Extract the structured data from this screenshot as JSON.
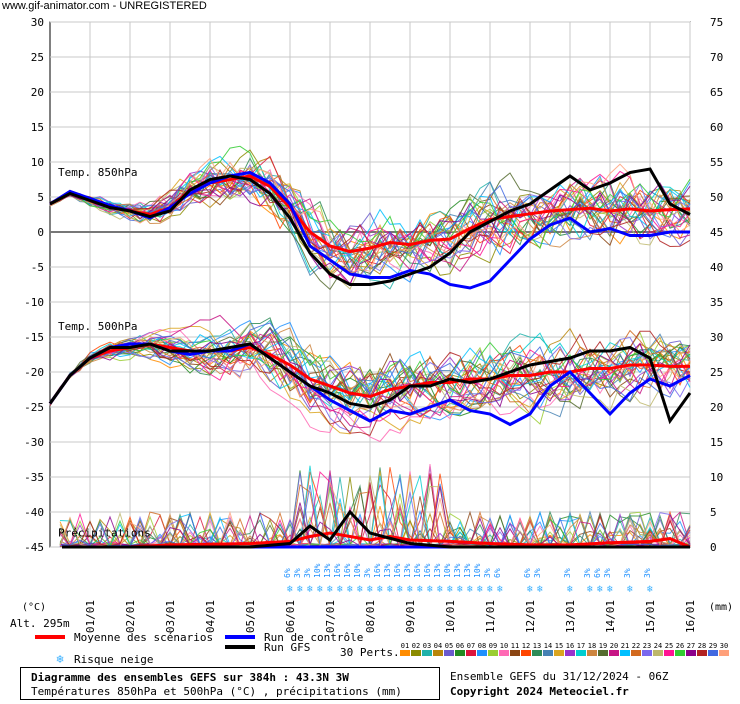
{
  "watermark": "www.gif-animator.com - UNREGISTERED",
  "chart_data": {
    "type": "line",
    "title": "Diagramme des ensembles GEFS sur 384h : 43.3N 3W",
    "subtitle": "Températures 850hPa et 500hPa (°C) , précipitations (mm)",
    "ensemble_info": "Ensemble GEFS du 31/12/2024 - 06Z",
    "copyright": "Copyright 2024 Meteociel.fr",
    "left_axis_unit": "(°C)",
    "right_axis_unit": "(mm)",
    "altitude": "Alt. 295m",
    "ylim_left": [
      -45,
      30
    ],
    "ylim_right": [
      0,
      75
    ],
    "left_ticks": [
      "30",
      "25",
      "20",
      "15",
      "10",
      "5",
      "0",
      "-5",
      "-10",
      "-15",
      "-20",
      "-25",
      "-30",
      "-35",
      "-40",
      "-45"
    ],
    "right_ticks": [
      "75",
      "70",
      "65",
      "60",
      "55",
      "50",
      "45",
      "40",
      "35",
      "30",
      "25",
      "20",
      "15",
      "10",
      "5",
      "0"
    ],
    "x_ticks": [
      "01/01",
      "02/01",
      "03/01",
      "04/01",
      "05/01",
      "06/01",
      "07/01",
      "08/01",
      "09/01",
      "10/01",
      "11/01",
      "12/01",
      "13/01",
      "14/01",
      "15/01",
      "16/01"
    ],
    "panel_labels": [
      "Temp. 850hPa",
      "Temp. 500hPa",
      "Précipitations"
    ],
    "snow_risk_marks": [
      {
        "x": 6.0,
        "pct": "6%"
      },
      {
        "x": 6.25,
        "pct": "3%"
      },
      {
        "x": 6.5,
        "pct": "3%"
      },
      {
        "x": 6.75,
        "pct": "10%"
      },
      {
        "x": 7.0,
        "pct": "13%"
      },
      {
        "x": 7.25,
        "pct": "16%"
      },
      {
        "x": 7.5,
        "pct": "16%"
      },
      {
        "x": 7.75,
        "pct": "10%"
      },
      {
        "x": 8.0,
        "pct": "3%"
      },
      {
        "x": 8.25,
        "pct": "16%"
      },
      {
        "x": 8.5,
        "pct": "13%"
      },
      {
        "x": 8.75,
        "pct": "16%"
      },
      {
        "x": 9.0,
        "pct": "13%"
      },
      {
        "x": 9.25,
        "pct": "16%"
      },
      {
        "x": 9.5,
        "pct": "16%"
      },
      {
        "x": 9.75,
        "pct": "13%"
      },
      {
        "x": 10.0,
        "pct": "10%"
      },
      {
        "x": 10.25,
        "pct": "13%"
      },
      {
        "x": 10.5,
        "pct": "13%"
      },
      {
        "x": 10.75,
        "pct": "10%"
      },
      {
        "x": 11.0,
        "pct": "3%"
      },
      {
        "x": 11.25,
        "pct": "6%"
      },
      {
        "x": 12.0,
        "pct": "6%"
      },
      {
        "x": 12.25,
        "pct": "3%"
      },
      {
        "x": 13.0,
        "pct": "3%"
      },
      {
        "x": 13.5,
        "pct": "3%"
      },
      {
        "x": 13.75,
        "pct": "6%"
      },
      {
        "x": 14.0,
        "pct": "3%"
      },
      {
        "x": 14.5,
        "pct": "3%"
      },
      {
        "x": 15.0,
        "pct": "3%"
      }
    ],
    "snow_label": "Risque neige",
    "legend": {
      "mean": "Moyenne des scénarios",
      "control": "Run de contrôle",
      "gfs": "Run GFS",
      "perts_label": "30 Perts."
    },
    "pert_numbers": [
      "01",
      "02",
      "03",
      "04",
      "05",
      "06",
      "07",
      "08",
      "09",
      "10",
      "11",
      "12",
      "13",
      "14",
      "15",
      "16",
      "17",
      "18",
      "19",
      "20",
      "21",
      "22",
      "23",
      "24",
      "25",
      "26",
      "27",
      "28",
      "29",
      "30"
    ],
    "pert_colors": [
      "#ff8c00",
      "#8b8b00",
      "#20b2aa",
      "#b8860b",
      "#6a5acd",
      "#228b22",
      "#dc143c",
      "#1e90ff",
      "#9acd32",
      "#ff69b4",
      "#8b4513",
      "#ff4500",
      "#2e8b57",
      "#4682b4",
      "#daa520",
      "#9932cc",
      "#00ced1",
      "#cd853f",
      "#556b2f",
      "#c71585",
      "#00bfff",
      "#d2691e",
      "#7b68ee",
      "#bdb76b",
      "#ff1493",
      "#32cd32",
      "#8b008b",
      "#b22222",
      "#4169e1",
      "#ffa07a"
    ],
    "x_range_days": [
      0,
      16
    ],
    "series": [
      {
        "name": "Moyenne des scénarios",
        "role": "mean",
        "color": "#ff0000",
        "t850": [
          [
            0,
            4
          ],
          [
            0.5,
            5.5
          ],
          [
            1,
            4.5
          ],
          [
            1.5,
            3.5
          ],
          [
            2,
            3
          ],
          [
            2.5,
            2.5
          ],
          [
            3,
            3.5
          ],
          [
            3.5,
            6
          ],
          [
            4,
            7
          ],
          [
            4.5,
            7.5
          ],
          [
            5,
            8
          ],
          [
            5.5,
            6.5
          ],
          [
            6,
            3.5
          ],
          [
            6.5,
            0
          ],
          [
            7,
            -2
          ],
          [
            7.5,
            -2.8
          ],
          [
            8,
            -2.3
          ],
          [
            8.5,
            -1.5
          ],
          [
            9,
            -1.8
          ],
          [
            9.5,
            -1.2
          ],
          [
            10,
            -1
          ],
          [
            10.5,
            0.5
          ],
          [
            11,
            1.8
          ],
          [
            11.5,
            2.2
          ],
          [
            12,
            2.6
          ],
          [
            12.5,
            3
          ],
          [
            13,
            3.2
          ],
          [
            13.5,
            3.4
          ],
          [
            14,
            3
          ],
          [
            14.5,
            3.3
          ],
          [
            15,
            3
          ],
          [
            15.5,
            3.2
          ],
          [
            16,
            3.3
          ]
        ],
        "t500": [
          [
            0,
            -24.5
          ],
          [
            0.5,
            -20.5
          ],
          [
            1,
            -18
          ],
          [
            1.5,
            -17
          ],
          [
            2,
            -16.5
          ],
          [
            2.5,
            -16
          ],
          [
            3,
            -16.5
          ],
          [
            3.5,
            -17
          ],
          [
            4,
            -17
          ],
          [
            4.5,
            -17
          ],
          [
            5,
            -16.5
          ],
          [
            5.5,
            -17.5
          ],
          [
            6,
            -19
          ],
          [
            6.5,
            -21
          ],
          [
            7,
            -22
          ],
          [
            7.5,
            -23
          ],
          [
            8,
            -23.5
          ],
          [
            8.5,
            -22.5
          ],
          [
            9,
            -22
          ],
          [
            9.5,
            -21.5
          ],
          [
            10,
            -21.5
          ],
          [
            10.5,
            -21
          ],
          [
            11,
            -21
          ],
          [
            11.5,
            -20.5
          ],
          [
            12,
            -20.5
          ],
          [
            12.5,
            -20
          ],
          [
            13,
            -20
          ],
          [
            13.5,
            -19.5
          ],
          [
            14,
            -19.5
          ],
          [
            14.5,
            -19
          ],
          [
            15,
            -19
          ],
          [
            15.5,
            -19.2
          ],
          [
            16,
            -19.2
          ]
        ],
        "precip": [
          [
            0.3,
            0
          ],
          [
            2,
            0
          ],
          [
            3,
            0.3
          ],
          [
            4,
            0.4
          ],
          [
            5,
            0.5
          ],
          [
            6,
            0.8
          ],
          [
            6.5,
            1.5
          ],
          [
            7,
            2
          ],
          [
            7.5,
            1.5
          ],
          [
            8,
            1
          ],
          [
            8.5,
            1.5
          ],
          [
            9,
            1
          ],
          [
            10,
            0.8
          ],
          [
            11,
            0.5
          ],
          [
            12,
            0.3
          ],
          [
            13,
            0.3
          ],
          [
            14,
            0.6
          ],
          [
            15,
            0.8
          ],
          [
            15.5,
            1.2
          ],
          [
            16,
            0
          ]
        ]
      },
      {
        "name": "Run de contrôle",
        "role": "control",
        "color": "#0000ff",
        "t850": [
          [
            0,
            4
          ],
          [
            0.5,
            5.8
          ],
          [
            1,
            4.8
          ],
          [
            1.5,
            3.8
          ],
          [
            2,
            3
          ],
          [
            2.5,
            2
          ],
          [
            3,
            3.5
          ],
          [
            3.5,
            5.5
          ],
          [
            4,
            7
          ],
          [
            4.5,
            8
          ],
          [
            5,
            8.5
          ],
          [
            5.5,
            7
          ],
          [
            6,
            4
          ],
          [
            6.5,
            -2
          ],
          [
            7,
            -4
          ],
          [
            7.5,
            -6
          ],
          [
            8,
            -6.5
          ],
          [
            8.5,
            -6.5
          ],
          [
            9,
            -5.5
          ],
          [
            9.5,
            -6
          ],
          [
            10,
            -7.5
          ],
          [
            10.5,
            -8
          ],
          [
            11,
            -7
          ],
          [
            11.5,
            -4
          ],
          [
            12,
            -1
          ],
          [
            12.5,
            1
          ],
          [
            13,
            2
          ],
          [
            13.5,
            0
          ],
          [
            14,
            0.5
          ],
          [
            14.5,
            -0.5
          ],
          [
            15,
            -0.5
          ],
          [
            15.5,
            0
          ],
          [
            16,
            0
          ]
        ],
        "t500": [
          [
            0,
            -24.5
          ],
          [
            0.5,
            -20.5
          ],
          [
            1,
            -18
          ],
          [
            1.5,
            -16.5
          ],
          [
            2,
            -16
          ],
          [
            2.5,
            -16
          ],
          [
            3,
            -17
          ],
          [
            3.5,
            -17.5
          ],
          [
            4,
            -17
          ],
          [
            4.5,
            -17
          ],
          [
            5,
            -16
          ],
          [
            5.5,
            -18
          ],
          [
            6,
            -20
          ],
          [
            6.5,
            -22
          ],
          [
            7,
            -24
          ],
          [
            7.5,
            -25.5
          ],
          [
            8,
            -27
          ],
          [
            8.5,
            -25.5
          ],
          [
            9,
            -26
          ],
          [
            9.5,
            -25
          ],
          [
            10,
            -24
          ],
          [
            10.5,
            -25.5
          ],
          [
            11,
            -26
          ],
          [
            11.5,
            -27.5
          ],
          [
            12,
            -26
          ],
          [
            12.5,
            -22
          ],
          [
            13,
            -20
          ],
          [
            13.5,
            -23
          ],
          [
            14,
            -26
          ],
          [
            14.5,
            -23
          ],
          [
            15,
            -21
          ],
          [
            15.5,
            -22
          ],
          [
            16,
            -20.5
          ]
        ],
        "precip": [
          [
            0.3,
            0
          ],
          [
            3,
            0
          ],
          [
            5,
            0
          ],
          [
            6,
            0
          ],
          [
            7,
            0
          ],
          [
            8,
            0
          ],
          [
            10,
            0
          ],
          [
            12,
            0
          ],
          [
            14,
            0
          ],
          [
            16,
            0
          ]
        ]
      },
      {
        "name": "Run GFS",
        "role": "gfs",
        "color": "#000000",
        "t850": [
          [
            0,
            4
          ],
          [
            0.5,
            5.5
          ],
          [
            1,
            4.5
          ],
          [
            1.5,
            3.5
          ],
          [
            2,
            3
          ],
          [
            2.5,
            2.2
          ],
          [
            3,
            3
          ],
          [
            3.5,
            6
          ],
          [
            4,
            7.5
          ],
          [
            4.5,
            8
          ],
          [
            5,
            7.5
          ],
          [
            5.5,
            5.5
          ],
          [
            6,
            2
          ],
          [
            6.5,
            -3
          ],
          [
            7,
            -6
          ],
          [
            7.5,
            -7.5
          ],
          [
            8,
            -7.5
          ],
          [
            8.5,
            -7
          ],
          [
            9,
            -6
          ],
          [
            9.5,
            -5
          ],
          [
            10,
            -3
          ],
          [
            10.5,
            0
          ],
          [
            11,
            1.5
          ],
          [
            11.5,
            3
          ],
          [
            12,
            4
          ],
          [
            12.5,
            6
          ],
          [
            13,
            8
          ],
          [
            13.5,
            6
          ],
          [
            14,
            7
          ],
          [
            14.5,
            8.5
          ],
          [
            15,
            9
          ],
          [
            15.5,
            4
          ],
          [
            16,
            2.5
          ]
        ],
        "t500": [
          [
            0,
            -24.5
          ],
          [
            0.5,
            -20.5
          ],
          [
            1,
            -18
          ],
          [
            1.5,
            -16.5
          ],
          [
            2,
            -16.5
          ],
          [
            2.5,
            -16
          ],
          [
            3,
            -17
          ],
          [
            3.5,
            -17
          ],
          [
            4,
            -17
          ],
          [
            4.5,
            -16.5
          ],
          [
            5,
            -16
          ],
          [
            5.5,
            -18
          ],
          [
            6,
            -20
          ],
          [
            6.5,
            -22
          ],
          [
            7,
            -23
          ],
          [
            7.5,
            -24.5
          ],
          [
            8,
            -25
          ],
          [
            8.5,
            -24
          ],
          [
            9,
            -22
          ],
          [
            9.5,
            -22
          ],
          [
            10,
            -21
          ],
          [
            10.5,
            -21.5
          ],
          [
            11,
            -21
          ],
          [
            11.5,
            -20
          ],
          [
            12,
            -19
          ],
          [
            12.5,
            -18.5
          ],
          [
            13,
            -18
          ],
          [
            13.5,
            -17
          ],
          [
            14,
            -17
          ],
          [
            14.5,
            -16.5
          ],
          [
            15,
            -18
          ],
          [
            15.5,
            -27
          ],
          [
            16,
            -23
          ]
        ],
        "precip": [
          [
            0.3,
            0
          ],
          [
            3,
            0
          ],
          [
            5,
            0
          ],
          [
            6,
            0.5
          ],
          [
            6.5,
            3
          ],
          [
            7,
            1
          ],
          [
            7.5,
            5
          ],
          [
            8,
            2
          ],
          [
            9,
            0.5
          ],
          [
            10,
            0
          ],
          [
            12,
            0
          ],
          [
            14,
            0
          ],
          [
            16,
            0
          ]
        ]
      }
    ]
  }
}
